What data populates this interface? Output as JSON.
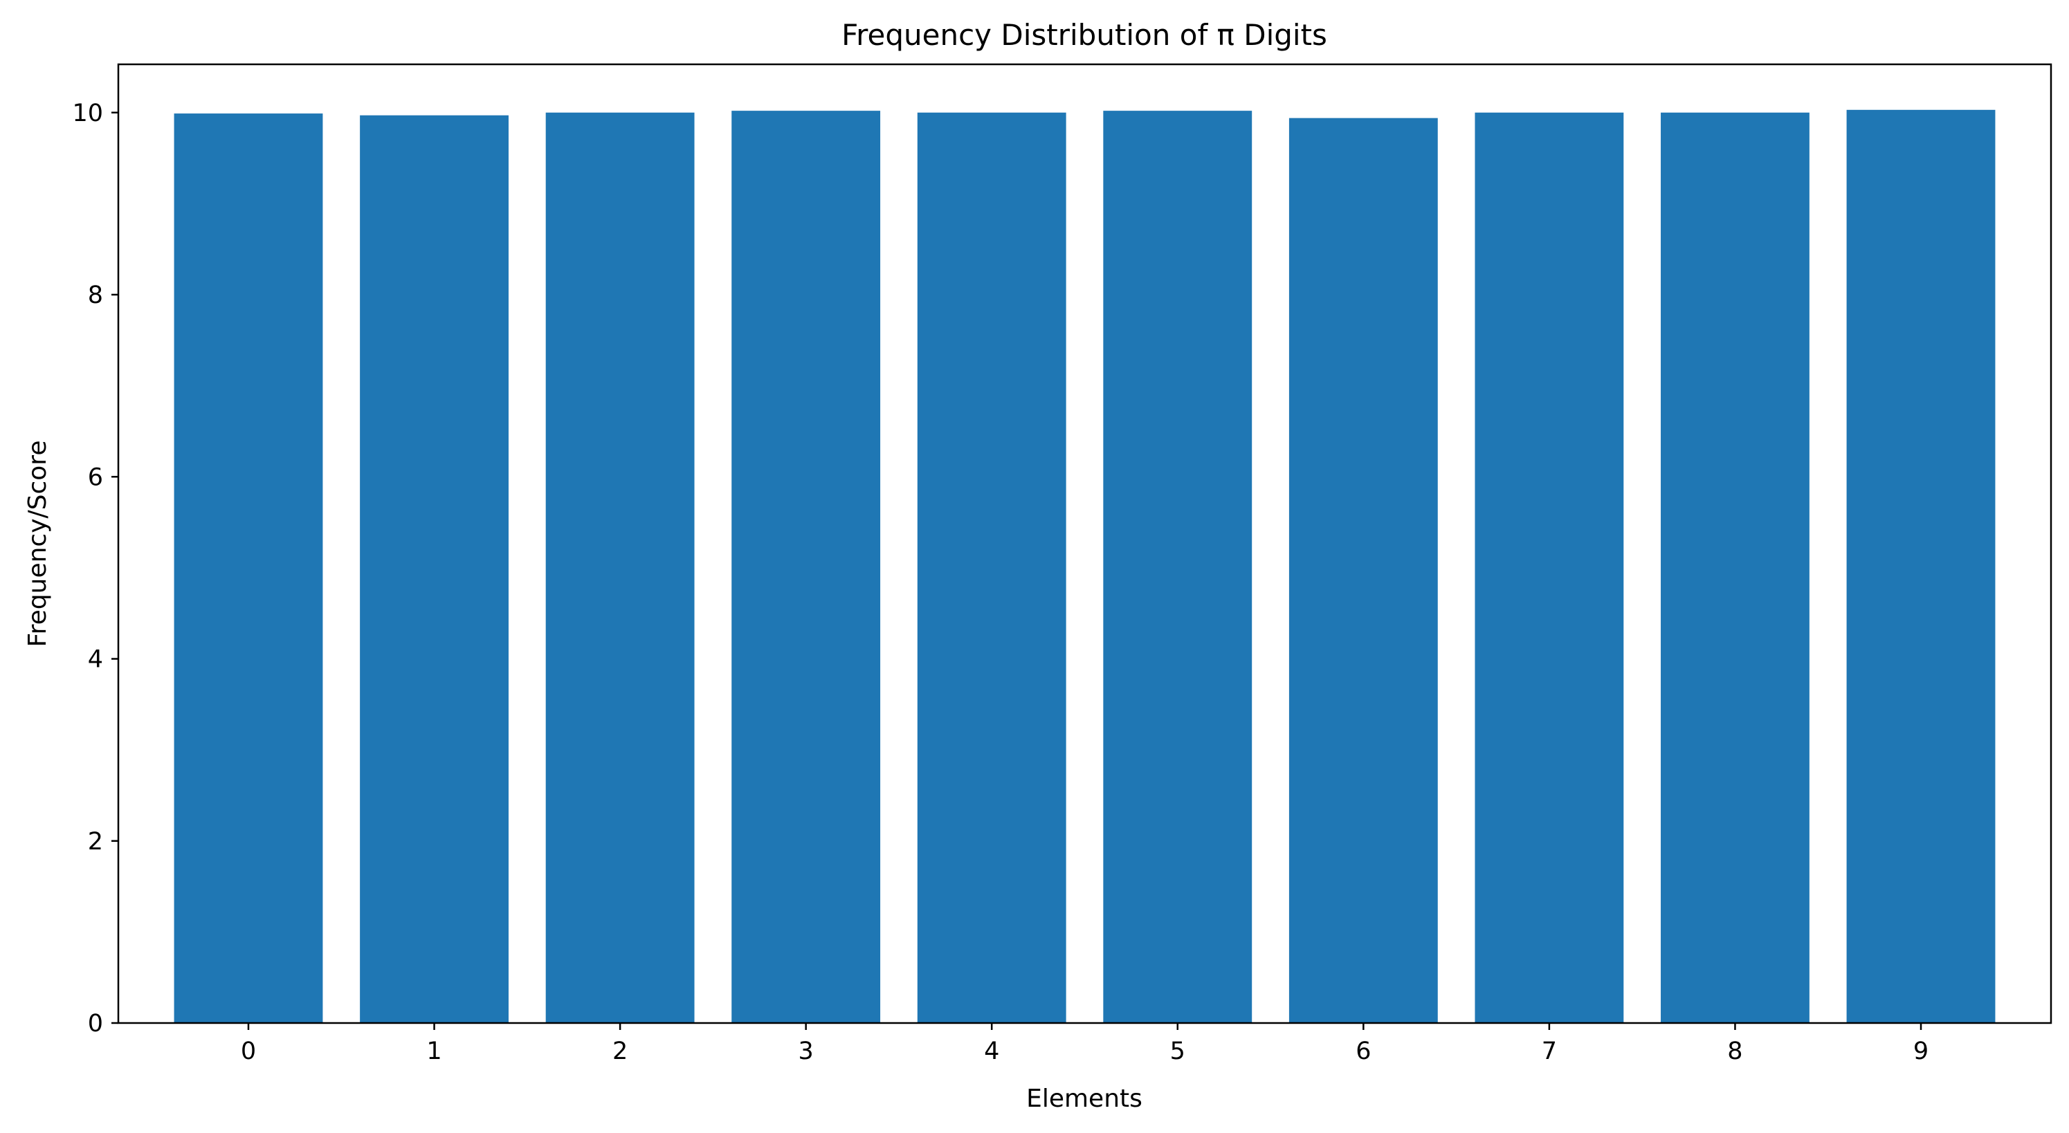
{
  "chart_data": {
    "type": "bar",
    "title": "Frequency Distribution of π Digits",
    "xlabel": "Elements",
    "ylabel": "Frequency/Score",
    "categories": [
      "0",
      "1",
      "2",
      "3",
      "4",
      "5",
      "6",
      "7",
      "8",
      "9"
    ],
    "values": [
      9.99,
      9.97,
      10.0,
      10.02,
      10.0,
      10.02,
      9.94,
      10.0,
      10.0,
      10.03
    ],
    "ylim": [
      0,
      10.53
    ],
    "yticks": [
      0,
      2,
      4,
      6,
      8,
      10
    ],
    "grid": false,
    "bar_color": "#1f77b4"
  }
}
